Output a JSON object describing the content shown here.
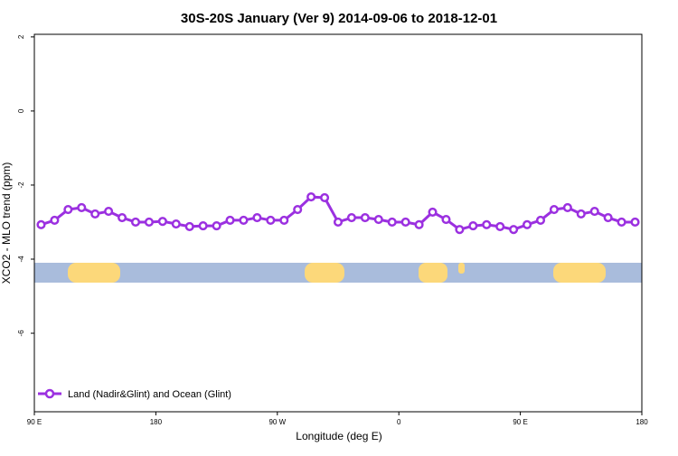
{
  "chart_data": {
    "type": "line",
    "title": "30S-20S January (Ver 9)   2014-09-06 to 2018-12-01",
    "x_label": "Longitude (deg E)",
    "y_label": "XCO2 - MLO trend (ppm)",
    "x": [
      95,
      105,
      115,
      125,
      135,
      145,
      155,
      165,
      175,
      185,
      195,
      205,
      215,
      225,
      235,
      245,
      255,
      265,
      275,
      285,
      295,
      305,
      315,
      325,
      335,
      345,
      355,
      365,
      375,
      385,
      395,
      405,
      415,
      425,
      435,
      445,
      455,
      465,
      475,
      485,
      495,
      505,
      515,
      525,
      535
    ],
    "series": [
      {
        "name": "Land (Nadir&Glint) and Ocean (Glint)",
        "color": "#9b30e0",
        "values": [
          -3.07,
          -2.95,
          -2.66,
          -2.61,
          -2.78,
          -2.71,
          -2.88,
          -3.0,
          -3.0,
          -2.98,
          -3.05,
          -3.12,
          -3.1,
          -3.1,
          -2.95,
          -2.95,
          -2.88,
          -2.95,
          -2.95,
          -2.66,
          -2.32,
          -2.34,
          -3.0,
          -2.88,
          -2.88,
          -2.93,
          -3.0,
          -3.0,
          -3.07,
          -2.73,
          -2.93,
          -3.2,
          -3.1,
          -3.07,
          -3.12,
          -3.2,
          -3.07,
          -2.95,
          -2.66,
          -2.61,
          -2.78,
          -2.71,
          -2.88,
          -3.0,
          -3.0
        ]
      }
    ],
    "xlim": [
      90,
      540
    ],
    "xticks": [
      {
        "value": 90,
        "label": "90 E"
      },
      {
        "value": 180,
        "label": "180"
      },
      {
        "value": 270,
        "label": "90 W"
      },
      {
        "value": 360,
        "label": "0"
      },
      {
        "value": 450,
        "label": "90 E"
      },
      {
        "value": 540,
        "label": "180"
      }
    ],
    "ylim": [
      -8.12,
      2.07
    ],
    "yticks": [
      2,
      0,
      -2,
      -4,
      -6
    ],
    "legend": "bottom-left"
  }
}
